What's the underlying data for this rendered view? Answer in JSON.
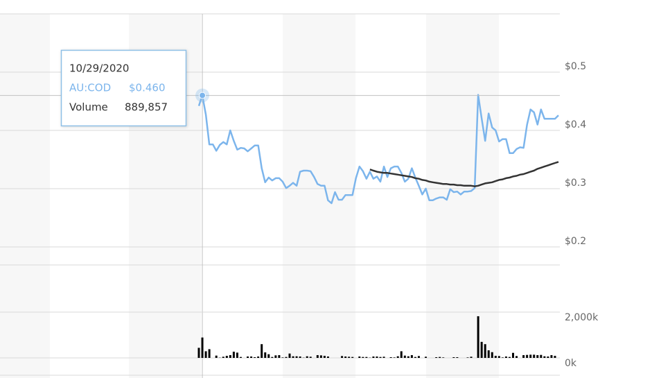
{
  "chart_data": [
    {
      "type": "line",
      "ylim": [
        0.2,
        0.6
      ],
      "yticks": [
        {
          "value": 0.2,
          "label": "$0.2"
        },
        {
          "value": 0.3,
          "label": "$0.3"
        },
        {
          "value": 0.4,
          "label": "$0.4"
        },
        {
          "value": 0.5,
          "label": "$0.5"
        }
      ],
      "grid": true,
      "series": [
        {
          "name": "AU:COD",
          "color": "#7cb5ec",
          "values": [
            0.442,
            0.46,
            0.427,
            0.376,
            0.376,
            0.365,
            0.375,
            0.38,
            0.376,
            0.4,
            0.382,
            0.367,
            0.37,
            0.369,
            0.364,
            0.369,
            0.374,
            0.374,
            0.335,
            0.311,
            0.319,
            0.314,
            0.318,
            0.318,
            0.312,
            0.301,
            0.305,
            0.31,
            0.305,
            0.329,
            0.331,
            0.331,
            0.33,
            0.32,
            0.308,
            0.305,
            0.305,
            0.28,
            0.275,
            0.294,
            0.281,
            0.281,
            0.289,
            0.289,
            0.289,
            0.318,
            0.338,
            0.33,
            0.317,
            0.329,
            0.317,
            0.321,
            0.312,
            0.338,
            0.32,
            0.335,
            0.338,
            0.338,
            0.327,
            0.312,
            0.317,
            0.335,
            0.319,
            0.305,
            0.29,
            0.3,
            0.28,
            0.28,
            0.283,
            0.285,
            0.285,
            0.281,
            0.299,
            0.294,
            0.295,
            0.29,
            0.295,
            0.295,
            0.296,
            0.301,
            0.461,
            0.421,
            0.382,
            0.429,
            0.405,
            0.4,
            0.381,
            0.385,
            0.385,
            0.361,
            0.361,
            0.368,
            0.371,
            0.37,
            0.41,
            0.436,
            0.431,
            0.41,
            0.436,
            0.42,
            0.42,
            0.42,
            0.42,
            0.426
          ]
        },
        {
          "color": "#333333",
          "values": [
            null,
            null,
            null,
            null,
            null,
            null,
            null,
            null,
            null,
            null,
            null,
            null,
            null,
            null,
            null,
            null,
            null,
            null,
            null,
            null,
            null,
            null,
            null,
            null,
            null,
            null,
            null,
            null,
            null,
            null,
            null,
            null,
            null,
            null,
            null,
            null,
            null,
            null,
            null,
            null,
            null,
            null,
            null,
            null,
            null,
            null,
            null,
            null,
            null,
            0.333,
            0.331,
            0.329,
            0.328,
            0.327,
            0.327,
            0.326,
            0.325,
            0.324,
            0.323,
            0.322,
            0.321,
            0.32,
            0.318,
            0.317,
            0.315,
            0.314,
            0.312,
            0.311,
            0.31,
            0.309,
            0.308,
            0.308,
            0.307,
            0.307,
            0.306,
            0.306,
            0.305,
            0.305,
            0.305,
            0.304,
            0.305,
            0.307,
            0.309,
            0.31,
            0.311,
            0.313,
            0.315,
            0.316,
            0.318,
            0.319,
            0.321,
            0.322,
            0.324,
            0.325,
            0.327,
            0.329,
            0.331,
            0.334,
            0.336,
            0.338,
            0.34,
            0.342,
            0.344,
            0.346
          ]
        }
      ]
    },
    {
      "type": "bar",
      "ylim": [
        0,
        4000
      ],
      "yticks": [
        {
          "value": 0,
          "label": "0k"
        },
        {
          "value": 2000,
          "label": "2,000k"
        }
      ],
      "grid": true,
      "color": "#000000",
      "values": [
        440,
        890,
        290,
        380,
        0,
        100,
        10,
        50,
        90,
        120,
        270,
        230,
        40,
        0,
        60,
        60,
        30,
        60,
        600,
        240,
        160,
        40,
        110,
        120,
        20,
        40,
        190,
        70,
        70,
        60,
        10,
        70,
        50,
        0,
        120,
        110,
        90,
        60,
        0,
        0,
        0,
        80,
        60,
        50,
        40,
        0,
        60,
        40,
        40,
        10,
        60,
        60,
        40,
        50,
        0,
        30,
        20,
        70,
        290,
        100,
        70,
        120,
        40,
        80,
        0,
        50,
        0,
        0,
        30,
        40,
        20,
        0,
        0,
        30,
        30,
        0,
        0,
        20,
        50,
        0,
        1820,
        700,
        600,
        330,
        250,
        90,
        80,
        20,
        60,
        40,
        220,
        80,
        0,
        120,
        130,
        140,
        140,
        120,
        130,
        70,
        60,
        120,
        90,
        0
      ]
    }
  ],
  "tooltip": {
    "index": 1,
    "date": "10/29/2020",
    "price": "$0.460",
    "volume_label": "Volume",
    "volume": "889,857"
  }
}
